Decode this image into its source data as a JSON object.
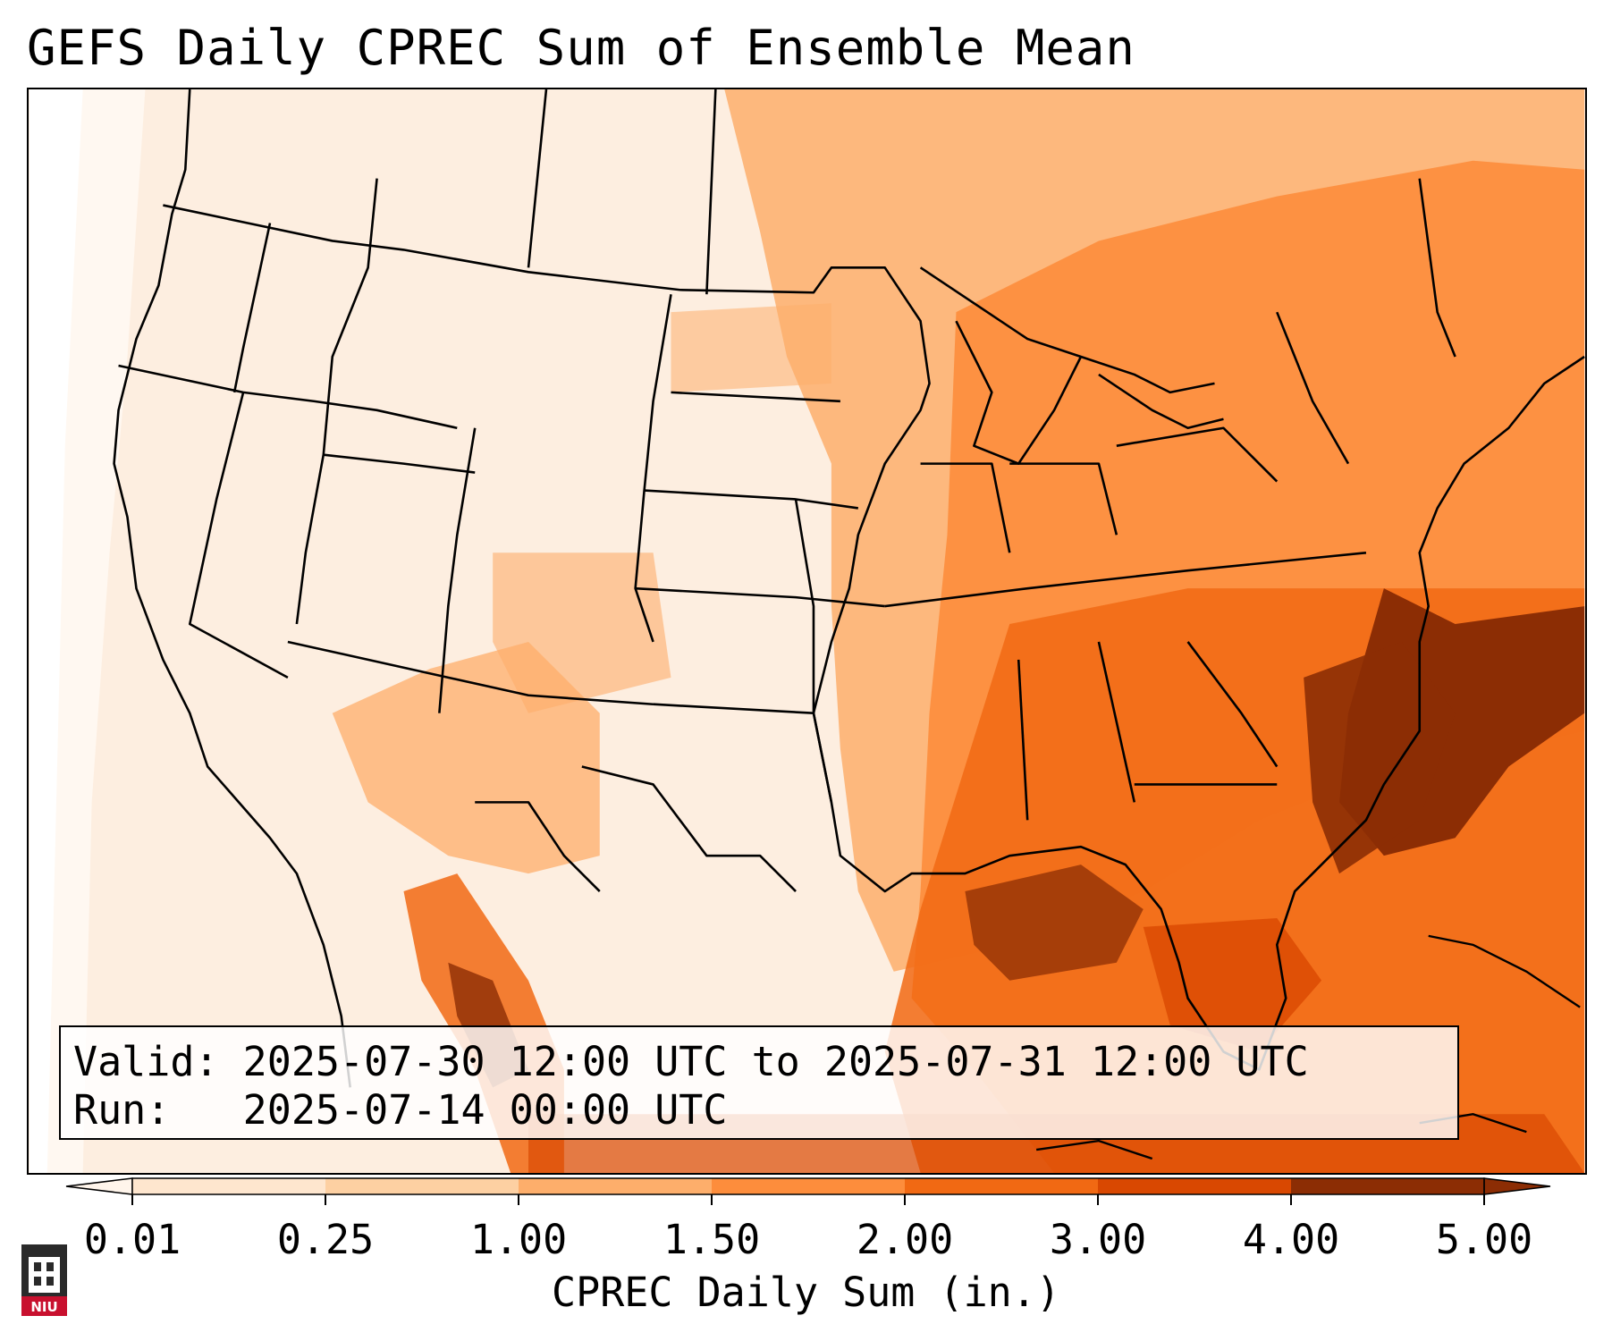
{
  "title": "GEFS Daily CPREC Sum of Ensemble Mean",
  "info": {
    "valid": "Valid: 2025-07-30 12:00 UTC to 2025-07-31 12:00 UTC",
    "run": "Run:   2025-07-14 00:00 UTC"
  },
  "colorbar": {
    "label": "CPREC Daily Sum (in.)",
    "ticks": [
      "0.01",
      "0.25",
      "1.00",
      "1.50",
      "2.00",
      "3.00",
      "4.00",
      "5.00"
    ],
    "colors": [
      "#fff5eb",
      "#fee6ce",
      "#fdd0a2",
      "#fdae6b",
      "#fd8d3c",
      "#f16913",
      "#d94801",
      "#8c2d04"
    ],
    "extend": "both"
  },
  "logo": {
    "text": "NIU"
  },
  "map": {
    "region": "Contiguous United States",
    "colors": {
      "very_light": "#fff5eb",
      "light": "#fee6ce",
      "light_medium": "#fdd0a2",
      "medium": "#fdae6b",
      "medium_dark": "#fd8d3c",
      "dark": "#f16913",
      "darker": "#d94801",
      "darkest": "#8c2d04"
    }
  }
}
